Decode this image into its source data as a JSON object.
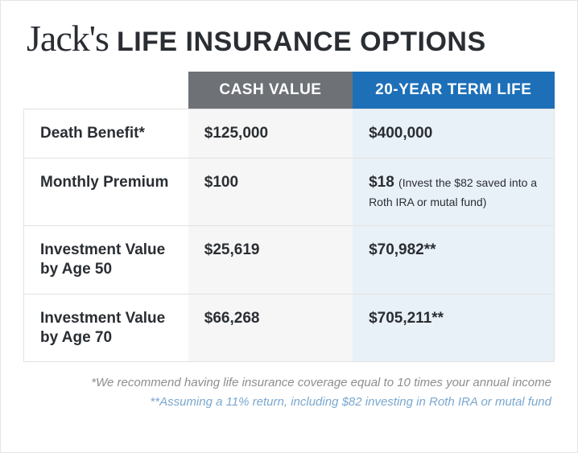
{
  "title": {
    "script": "Jack's",
    "block": "LIFE INSURANCE OPTIONS",
    "script_color": "#2a2e33",
    "block_color": "#2a2e33",
    "script_fontsize": 46,
    "block_fontsize": 34
  },
  "table": {
    "type": "table",
    "header": {
      "col_a": {
        "label": "CASH VALUE",
        "bg": "#6e7277",
        "fg": "#ffffff"
      },
      "col_b": {
        "label": "20-YEAR TERM LIFE",
        "bg": "#1d6fb8",
        "fg": "#ffffff"
      }
    },
    "col_bg": {
      "a": "#f6f6f6",
      "b": "#e9f1f8"
    },
    "border_color": "#e2e2e2",
    "rows": [
      {
        "label": "Death Benefit*",
        "a": "$125,000",
        "b": "$400,000",
        "b_note": ""
      },
      {
        "label": "Monthly Premium",
        "a": "$100",
        "b": "$18",
        "b_note": "(Invest the $82 saved into a Roth IRA or mutal fund)"
      },
      {
        "label": "Investment Value by Age 50",
        "a": "$25,619",
        "b": "$70,982**",
        "b_note": ""
      },
      {
        "label": "Investment Value by Age 70",
        "a": "$66,268",
        "b": "$705,211**",
        "b_note": ""
      }
    ]
  },
  "footnotes": {
    "fn1": "*We recommend having life insurance coverage equal to 10 times your annual income",
    "fn2": "**Assuming a 11% return, including $82 investing in Roth IRA or mutal fund",
    "fn1_color": "#8d8d8d",
    "fn2_color": "#7aa7cf",
    "fontsize": 15
  }
}
